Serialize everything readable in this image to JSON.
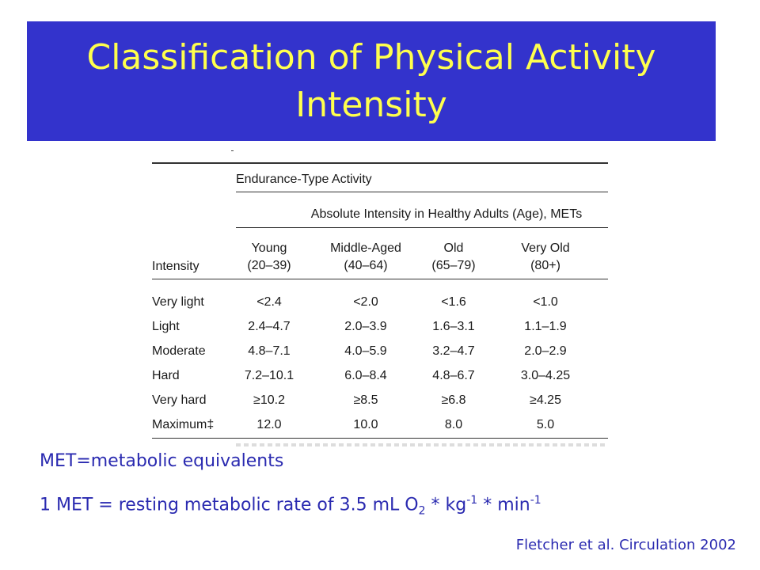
{
  "slide": {
    "title_line1": "Classification of Physical Activity",
    "title_line2": "Intensity"
  },
  "table": {
    "group_header": "Endurance-Type Activity",
    "sub_header": "Absolute Intensity in Healthy Adults (Age), METs",
    "intensity_label": "Intensity",
    "columns": [
      {
        "name": "Young",
        "range": "(20–39)"
      },
      {
        "name": "Middle-Aged",
        "range": "(40–64)"
      },
      {
        "name": "Old",
        "range": "(65–79)"
      },
      {
        "name": "Very Old",
        "range": "(80+)"
      }
    ],
    "rows": [
      {
        "label": "Very light",
        "values": [
          "<2.4",
          "<2.0",
          "<1.6",
          "<1.0"
        ]
      },
      {
        "label": "Light",
        "values": [
          "2.4–4.7",
          "2.0–3.9",
          "1.6–3.1",
          "1.1–1.9"
        ]
      },
      {
        "label": "Moderate",
        "values": [
          "4.8–7.1",
          "4.0–5.9",
          "3.2–4.7",
          "2.0–2.9"
        ]
      },
      {
        "label": "Hard",
        "values": [
          "7.2–10.1",
          "6.0–8.4",
          "4.8–6.7",
          "3.0–4.25"
        ]
      },
      {
        "label": "Very hard",
        "values": [
          "≥10.2",
          "≥8.5",
          "≥6.8",
          "≥4.25"
        ]
      },
      {
        "label": "Maximum‡",
        "values": [
          "12.0",
          "10.0",
          "8.0",
          "5.0"
        ]
      }
    ]
  },
  "notes": {
    "met_definition": "MET=metabolic equivalents",
    "met_rate_prefix": "1 MET = resting metabolic rate of 3.5 mL O",
    "o2_sub": "2",
    "star1": " * kg",
    "kg_sup": "-1",
    "star2": " * min",
    "min_sup": "-1"
  },
  "citation": "Fletcher et al. Circulation 2002",
  "colors": {
    "banner": "#3333cc",
    "title": "#ffff4d",
    "notes": "#2a2ab0"
  }
}
